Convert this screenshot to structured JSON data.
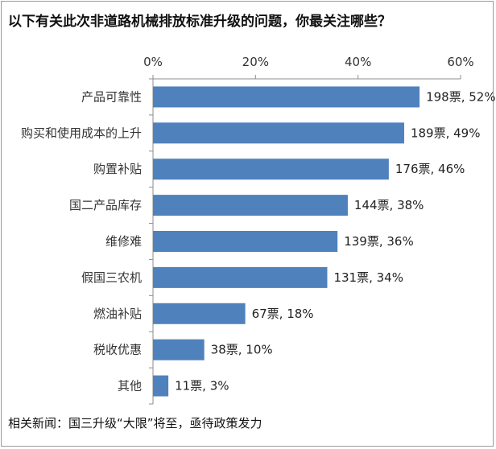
{
  "chart_data": {
    "type": "bar",
    "orientation": "horizontal",
    "title": "以下有关此次非道路机械排放标准升级的问题，你最关注哪些？",
    "categories": [
      "产品可靠性",
      "购买和使用成本的上升",
      "购置补贴",
      "国二产品库存",
      "维修难",
      "假国三农机",
      "燃油补贴",
      "税收优惠",
      "其他"
    ],
    "values": [
      52,
      49,
      46,
      38,
      36,
      34,
      18,
      10,
      3
    ],
    "votes": [
      198,
      189,
      176,
      144,
      139,
      131,
      67,
      38,
      11
    ],
    "data_labels": [
      "198票, 52%",
      "189票, 49%",
      "176票, 46%",
      "144票, 38%",
      "139票, 36%",
      "131票, 34%",
      "67票, 18%",
      "38票, 10%",
      "11票, 3%"
    ],
    "x_ticks": [
      "0%",
      "20%",
      "40%",
      "60%"
    ],
    "xlim": [
      0,
      60
    ],
    "x_axis_position": "top",
    "grid": false,
    "legend": "none",
    "bar_color": "#4f81bd"
  },
  "footer": "相关新闻：国三升级“大限”将至，亟待政策发力"
}
